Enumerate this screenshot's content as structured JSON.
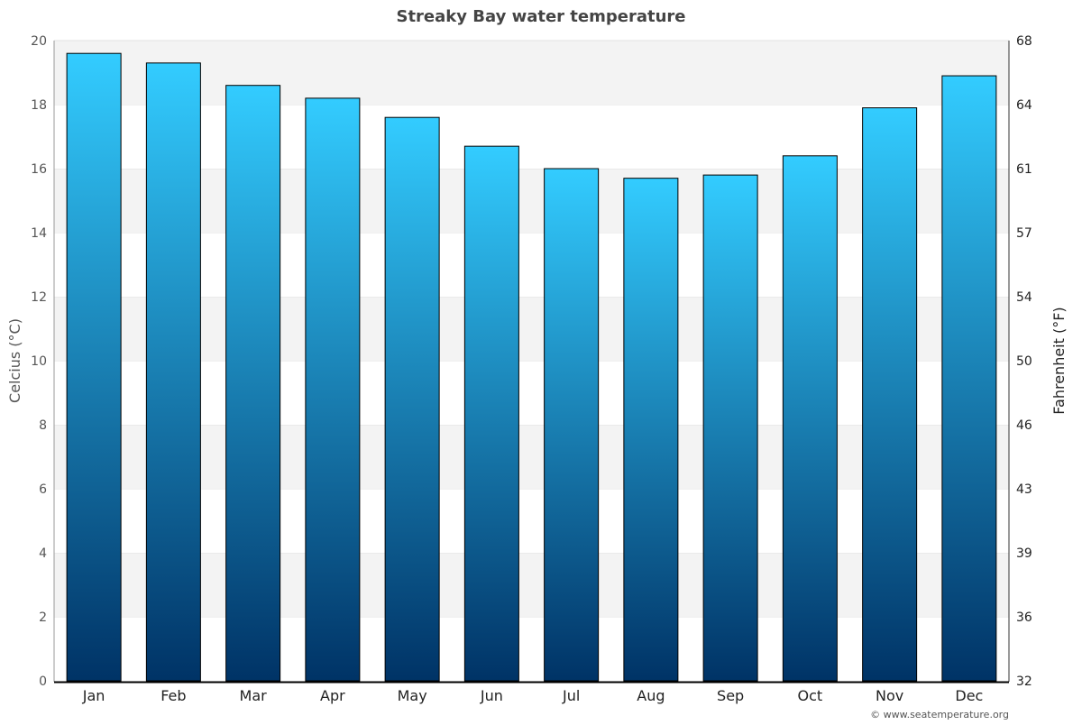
{
  "chart_data": {
    "type": "bar",
    "title": "Streaky Bay water temperature",
    "ylabel": "Celcius (°C)",
    "y2label": "Fahrenheit (°F)",
    "categories": [
      "Jan",
      "Feb",
      "Mar",
      "Apr",
      "May",
      "Jun",
      "Jul",
      "Aug",
      "Sep",
      "Oct",
      "Nov",
      "Dec"
    ],
    "values": [
      19.6,
      19.3,
      18.6,
      18.2,
      17.6,
      16.7,
      16.0,
      15.7,
      15.8,
      16.4,
      17.9,
      18.9
    ],
    "ylim": [
      0,
      20
    ],
    "yticks": [
      "0",
      "2",
      "4",
      "6",
      "8",
      "10",
      "12",
      "14",
      "16",
      "18",
      "20"
    ],
    "y2ticks": [
      "32",
      "36",
      "39",
      "43",
      "46",
      "50",
      "54",
      "57",
      "61",
      "64",
      "68"
    ],
    "grid": true,
    "bar_gradient": {
      "top": "#33ccff",
      "bottom": "#003366"
    },
    "credit": "© www.seatemperature.org"
  }
}
